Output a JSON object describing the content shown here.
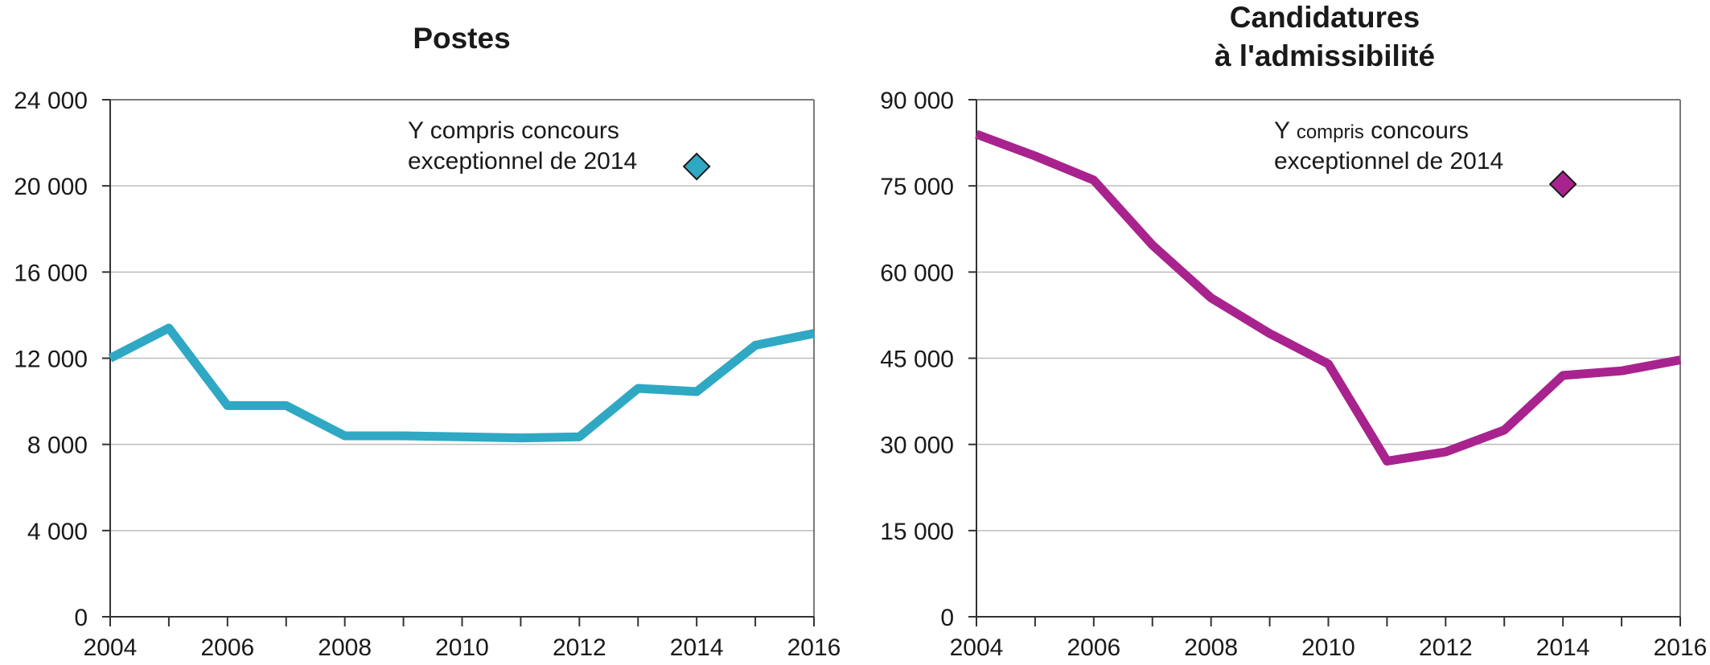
{
  "chart_data": [
    {
      "type": "line",
      "title": "Postes",
      "x": [
        2004,
        2005,
        2006,
        2007,
        2008,
        2009,
        2010,
        2011,
        2012,
        2013,
        2014,
        2015,
        2016
      ],
      "series": [
        {
          "values": [
            12000,
            13400,
            9800,
            9800,
            8400,
            8400,
            8350,
            8300,
            8350,
            10600,
            10450,
            12600,
            13150
          ],
          "color": "#2fa8c4"
        }
      ],
      "x_tick_labels": [
        "2004",
        "2006",
        "2008",
        "2010",
        "2012",
        "2014",
        "2016"
      ],
      "y_tick_labels": [
        "0",
        "4 000",
        "8 000",
        "12 000",
        "16 000",
        "20 000",
        "24 000"
      ],
      "ylim": [
        0,
        24000
      ],
      "xlim": [
        2004,
        2016
      ],
      "grid": true,
      "annotation": {
        "lines": [
          "Y compris concours",
          "exceptionnel de 2014"
        ],
        "point": {
          "x": 2014,
          "y": 20900
        },
        "marker": "diamond",
        "color": "#2fa8c4"
      }
    },
    {
      "type": "line",
      "title": [
        "Candidatures",
        "à l'admissibilité"
      ],
      "x": [
        2004,
        2005,
        2006,
        2007,
        2008,
        2009,
        2010,
        2011,
        2012,
        2013,
        2014,
        2015,
        2016
      ],
      "series": [
        {
          "values": [
            84000,
            80200,
            76000,
            64700,
            55500,
            49300,
            44000,
            27100,
            28700,
            32500,
            42000,
            42800,
            44700
          ],
          "color": "#a8238e"
        }
      ],
      "x_tick_labels": [
        "2004",
        "2006",
        "2008",
        "2010",
        "2012",
        "2014",
        "2016"
      ],
      "y_tick_labels": [
        "0",
        "15 000",
        "30 000",
        "45 000",
        "60 000",
        "75 000",
        "90 000"
      ],
      "ylim": [
        0,
        90000
      ],
      "xlim": [
        2004,
        2016
      ],
      "grid": true,
      "annotation": {
        "parts": [
          [
            "Y ",
            "compris",
            " concours"
          ],
          [
            "exceptionnel de 2014"
          ]
        ],
        "point": {
          "x": 2014,
          "y": 75300
        },
        "marker": "diamond",
        "color": "#a8238e"
      }
    }
  ]
}
